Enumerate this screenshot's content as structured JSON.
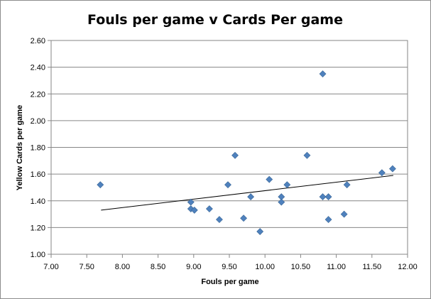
{
  "chart_data": {
    "type": "scatter",
    "title": "Fouls per game v Cards Per game",
    "xlabel": "Fouls per game",
    "ylabel": "Yellow Cards per game",
    "xlim": [
      7.0,
      12.0
    ],
    "ylim": [
      1.0,
      2.6
    ],
    "x_ticks": [
      "7.00",
      "7.50",
      "8.00",
      "8.50",
      "9.00",
      "9.50",
      "10.00",
      "10.50",
      "11.00",
      "11.50",
      "12.00"
    ],
    "y_ticks": [
      "1.00",
      "1.20",
      "1.40",
      "1.60",
      "1.80",
      "2.00",
      "2.20",
      "2.40",
      "2.60"
    ],
    "grid": "horizontal",
    "legend": "none",
    "marker_color": "#4f81bd",
    "trendline": {
      "x": [
        7.7,
        11.8
      ],
      "y": [
        1.33,
        1.59
      ]
    },
    "points": [
      {
        "x": 7.69,
        "y": 1.52
      },
      {
        "x": 8.96,
        "y": 1.39
      },
      {
        "x": 8.96,
        "y": 1.34
      },
      {
        "x": 9.01,
        "y": 1.33
      },
      {
        "x": 9.22,
        "y": 1.34
      },
      {
        "x": 9.36,
        "y": 1.26
      },
      {
        "x": 9.48,
        "y": 1.52
      },
      {
        "x": 9.58,
        "y": 1.74
      },
      {
        "x": 9.7,
        "y": 1.27
      },
      {
        "x": 9.8,
        "y": 1.43
      },
      {
        "x": 9.93,
        "y": 1.17
      },
      {
        "x": 10.06,
        "y": 1.56
      },
      {
        "x": 10.23,
        "y": 1.43
      },
      {
        "x": 10.23,
        "y": 1.39
      },
      {
        "x": 10.31,
        "y": 1.52
      },
      {
        "x": 10.59,
        "y": 1.74
      },
      {
        "x": 10.81,
        "y": 2.35
      },
      {
        "x": 10.81,
        "y": 1.43
      },
      {
        "x": 10.89,
        "y": 1.43
      },
      {
        "x": 10.89,
        "y": 1.26
      },
      {
        "x": 11.11,
        "y": 1.3
      },
      {
        "x": 11.15,
        "y": 1.52
      },
      {
        "x": 11.64,
        "y": 1.61
      },
      {
        "x": 11.79,
        "y": 1.64
      }
    ]
  }
}
